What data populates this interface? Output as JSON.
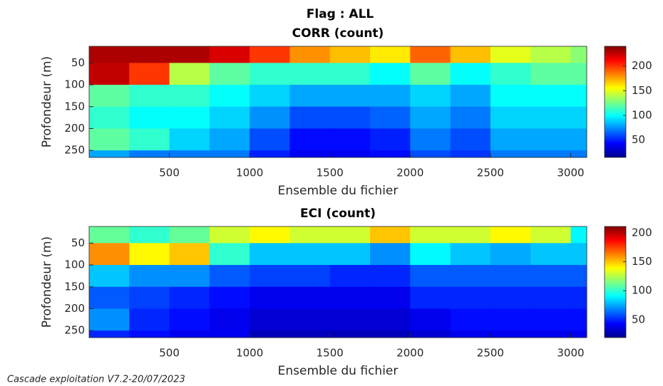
{
  "title": "Flag : ALL",
  "footer": "Cascade exploitation V7.2-20/07/2023",
  "chart_data": [
    {
      "type": "heatmap",
      "title": "CORR (count)",
      "xlabel": "Ensemble du fichier",
      "ylabel": "Profondeur (m)",
      "colormap": "jet",
      "y_reversed": true,
      "xbins": [
        0,
        250,
        500,
        750,
        1000,
        1250,
        1500,
        1750,
        2000,
        2250,
        2500,
        2750,
        3000,
        3100
      ],
      "ybins": [
        12,
        50,
        100,
        150,
        200,
        250,
        266
      ],
      "z": [
        [
          230,
          230,
          230,
          220,
          200,
          180,
          170,
          160,
          190,
          170,
          150,
          140,
          130
        ],
        [
          225,
          200,
          140,
          120,
          110,
          110,
          110,
          100,
          120,
          100,
          110,
          120,
          120
        ],
        [
          120,
          110,
          110,
          100,
          90,
          80,
          80,
          80,
          90,
          80,
          100,
          100,
          100
        ],
        [
          110,
          100,
          100,
          90,
          75,
          60,
          60,
          65,
          80,
          70,
          90,
          90,
          90
        ],
        [
          120,
          110,
          90,
          80,
          60,
          45,
          45,
          50,
          70,
          60,
          80,
          80,
          80
        ],
        [
          80,
          70,
          70,
          70,
          50,
          40,
          40,
          45,
          60,
          55,
          70,
          70,
          70
        ]
      ],
      "xlim": [
        0,
        3100
      ],
      "ylim": [
        12,
        266
      ],
      "xticks": [
        500,
        1000,
        1500,
        2000,
        2500,
        3000
      ],
      "yticks": [
        50,
        100,
        150,
        200,
        250
      ],
      "clim": [
        15,
        240
      ],
      "cticks": [
        50,
        100,
        150,
        200
      ]
    },
    {
      "type": "heatmap",
      "title": "ECI (count)",
      "xlabel": "Ensemble du fichier",
      "ylabel": "Profondeur (m)",
      "colormap": "jet",
      "y_reversed": true,
      "xbins": [
        0,
        250,
        500,
        750,
        1000,
        1250,
        1500,
        1750,
        2000,
        2250,
        2500,
        2750,
        3000,
        3100
      ],
      "ybins": [
        12,
        50,
        100,
        150,
        200,
        250,
        266
      ],
      "z": [
        [
          110,
          100,
          110,
          130,
          140,
          130,
          130,
          150,
          130,
          130,
          140,
          130,
          90
        ],
        [
          160,
          140,
          150,
          100,
          80,
          80,
          80,
          70,
          90,
          80,
          75,
          80,
          80
        ],
        [
          80,
          70,
          70,
          60,
          55,
          55,
          50,
          50,
          60,
          60,
          60,
          60,
          60
        ],
        [
          60,
          55,
          50,
          45,
          40,
          40,
          40,
          40,
          50,
          50,
          50,
          50,
          50
        ],
        [
          70,
          50,
          45,
          40,
          35,
          35,
          35,
          35,
          40,
          45,
          45,
          45,
          45
        ],
        [
          50,
          45,
          40,
          40,
          30,
          30,
          30,
          30,
          35,
          40,
          40,
          40,
          40
        ]
      ],
      "xlim": [
        0,
        3100
      ],
      "ylim": [
        12,
        266
      ],
      "xticks": [
        500,
        1000,
        1500,
        2000,
        2500,
        3000
      ],
      "yticks": [
        50,
        100,
        150,
        200,
        250
      ],
      "clim": [
        19,
        211
      ],
      "cticks": [
        50,
        100,
        150,
        200
      ]
    }
  ]
}
